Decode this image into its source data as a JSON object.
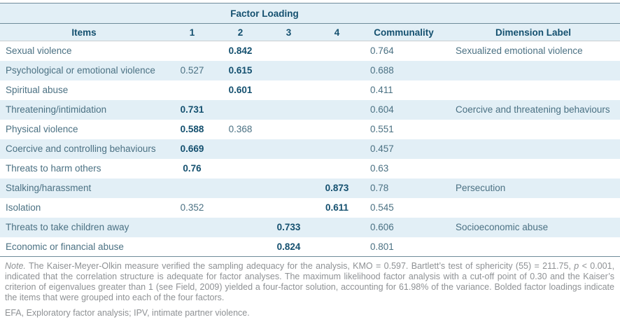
{
  "table": {
    "factor_loading_header": "Factor Loading",
    "columns": [
      "Items",
      "1",
      "2",
      "3",
      "4",
      "Communality",
      "Dimension Label"
    ],
    "rows": [
      {
        "item": "Sexual violence",
        "f": [
          null,
          {
            "v": "0.842",
            "b": true
          },
          null,
          null
        ],
        "communality": "0.764",
        "dimension": "Sexualized emotional violence"
      },
      {
        "item": "Psychological or emotional violence",
        "f": [
          {
            "v": "0.527",
            "b": false
          },
          {
            "v": "0.615",
            "b": true
          },
          null,
          null
        ],
        "communality": "0.688",
        "dimension": ""
      },
      {
        "item": "Spiritual abuse",
        "f": [
          null,
          {
            "v": "0.601",
            "b": true
          },
          null,
          null
        ],
        "communality": "0.411",
        "dimension": ""
      },
      {
        "item": "Threatening/intimidation",
        "f": [
          {
            "v": "0.731",
            "b": true
          },
          null,
          null,
          null
        ],
        "communality": "0.604",
        "dimension": "Coercive and threatening behaviours"
      },
      {
        "item": "Physical violence",
        "f": [
          {
            "v": "0.588",
            "b": true
          },
          {
            "v": "0.368",
            "b": false
          },
          null,
          null
        ],
        "communality": "0.551",
        "dimension": ""
      },
      {
        "item": "Coercive and controlling behaviours",
        "f": [
          {
            "v": "0.669",
            "b": true
          },
          null,
          null,
          null
        ],
        "communality": "0.457",
        "dimension": ""
      },
      {
        "item": "Threats to harm others",
        "f": [
          {
            "v": "0.76",
            "b": true
          },
          null,
          null,
          null
        ],
        "communality": "0.63",
        "dimension": ""
      },
      {
        "item": "Stalking/harassment",
        "f": [
          null,
          null,
          null,
          {
            "v": "0.873",
            "b": true
          }
        ],
        "communality": "0.78",
        "dimension": "Persecution"
      },
      {
        "item": "Isolation",
        "f": [
          {
            "v": "0.352",
            "b": false
          },
          null,
          null,
          {
            "v": "0.611",
            "b": true
          }
        ],
        "communality": "0.545",
        "dimension": ""
      },
      {
        "item": "Threats to take children away",
        "f": [
          null,
          null,
          {
            "v": "0.733",
            "b": true
          },
          null
        ],
        "communality": "0.606",
        "dimension": "Socioeconomic abuse"
      },
      {
        "item": "Economic or financial abuse",
        "f": [
          null,
          null,
          {
            "v": "0.824",
            "b": true
          },
          null
        ],
        "communality": "0.801",
        "dimension": ""
      }
    ]
  },
  "note": {
    "segments": [
      {
        "t": "Note.",
        "i": true
      },
      {
        "t": " The Kaiser-Meyer-Olkin measure verified the sampling adequacy for the analysis, KMO = 0.597. Bartlett’s test of sphericity (55) = 211.75, ",
        "i": false
      },
      {
        "t": "p",
        "i": true
      },
      {
        "t": " < 0.001, indicated that the correlation structure is adequate for factor analyses. The maximum likelihood factor analysis with a cut-off point of 0.30 and the Kaiser’s criterion of eigenvalues greater than 1 (see Field, 2009) yielded a four-factor solution, accounting for 61.98% of the variance. Bolded factor loadings indicate the items that were grouped into each of the four factors.",
        "i": false
      }
    ],
    "abbreviations": "EFA, Exploratory factor analysis; IPV, intimate partner violence."
  },
  "colors": {
    "stripe_blue": "#e2eff6",
    "navy_text": "#14506f",
    "slate_text": "#4b7183",
    "note_gray": "#8e9194",
    "rule_dark": "#6f8b9a",
    "rule_light": "#c9ced1"
  }
}
